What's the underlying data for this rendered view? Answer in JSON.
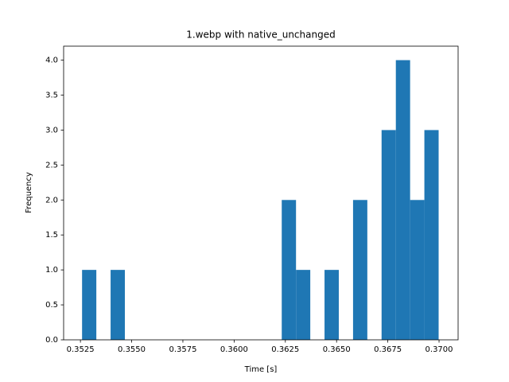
{
  "chart_data": {
    "type": "histogram",
    "title": "1.webp with native_unchanged",
    "xlabel": "Time [s]",
    "ylabel": "Frequency",
    "color": "#1f77b4",
    "bins": [
      0.35258,
      0.353276,
      0.353972,
      0.354668,
      0.355364,
      0.35606,
      0.356756,
      0.357452,
      0.358148,
      0.358844,
      0.35954,
      0.360236,
      0.360932,
      0.361628,
      0.362324,
      0.36302,
      0.363716,
      0.364412,
      0.365108,
      0.365804,
      0.3665,
      0.367196,
      0.367892,
      0.368588,
      0.369284,
      0.36998
    ],
    "values": [
      1,
      0,
      1,
      0,
      0,
      0,
      0,
      0,
      0,
      0,
      0,
      0,
      0,
      0,
      2,
      1,
      0,
      1,
      0,
      2,
      0,
      3,
      4,
      2,
      3
    ],
    "xlim": [
      0.35168,
      0.37093
    ],
    "ylim": [
      0,
      4.2
    ],
    "xticks": [
      0.3525,
      {
        "value": 0.355,
        "label": "0.3550"
      },
      0.3575,
      {
        "value": 0.36,
        "label": "0.3600"
      },
      0.3625,
      {
        "value": 0.365,
        "label": "0.3650"
      },
      0.3675,
      {
        "value": 0.37,
        "label": "0.3700"
      }
    ],
    "yticks": [
      {
        "value": 0,
        "label": "0.0"
      },
      0.5,
      {
        "value": 1,
        "label": "1.0"
      },
      1.5,
      {
        "value": 2,
        "label": "2.0"
      },
      2.5,
      {
        "value": 3,
        "label": "3.0"
      },
      3.5,
      {
        "value": 4,
        "label": "4.0"
      }
    ]
  }
}
